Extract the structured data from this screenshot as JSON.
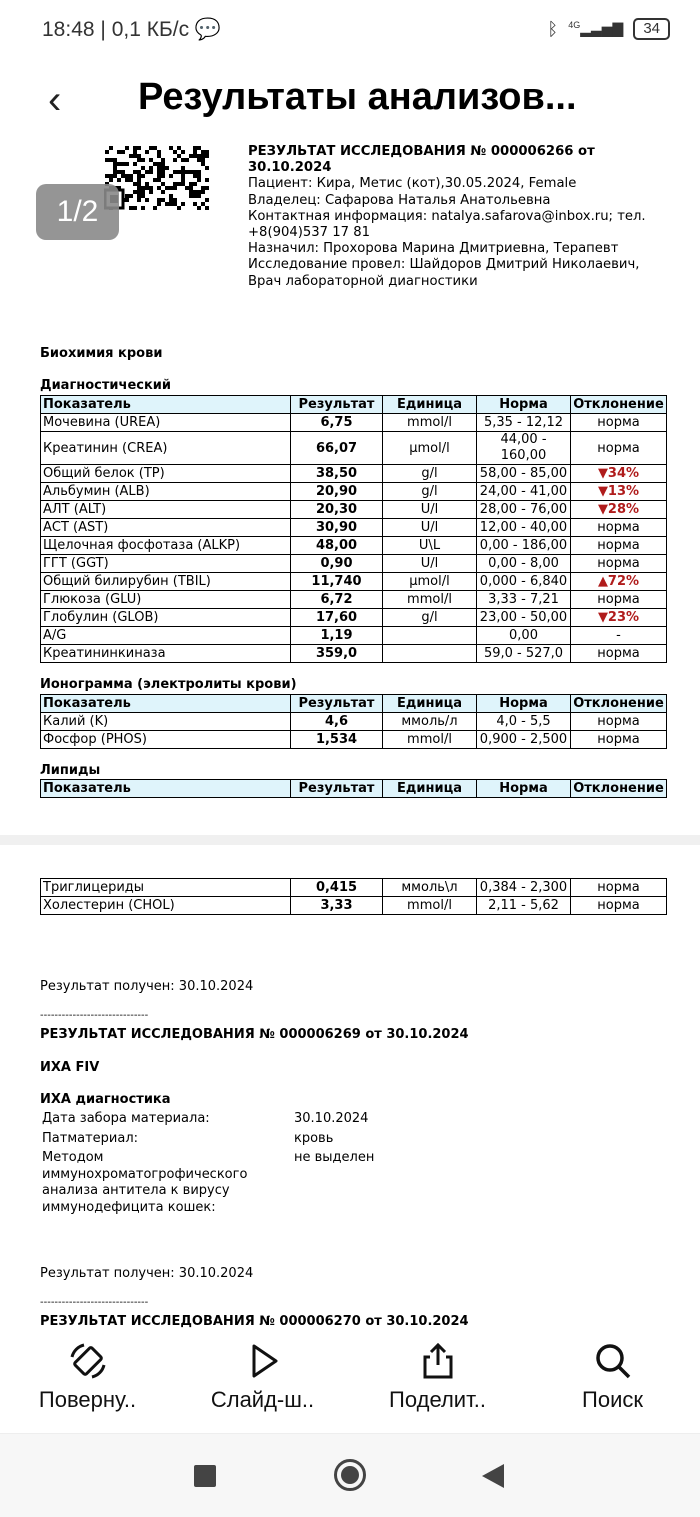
{
  "status": {
    "time": "18:48",
    "speed": "0,1 КБ/с",
    "network": "4G",
    "battery": "34"
  },
  "header": {
    "title": "Результаты анализов...",
    "page_indicator": "1/2"
  },
  "doc": {
    "heading_line1": "РЕЗУЛЬТАТ ИССЛЕДОВАНИЯ № 000006266 от",
    "heading_line2": "30.10.2024",
    "patient": "Пациент: Кира, Метис (кот),30.05.2024, Female",
    "owner": "Владелец: Сафарова Наталья Анатольевна",
    "contact1": "Контактная информация: natalya.safarova@inbox.ru; тел.",
    "contact2": "+8(904)537 17 81",
    "prescribed": "Назначил: Прохорова Марина Дмитриевна, Терапевт",
    "performed1": "Исследование провел: Шайдоров Дмитрий Николаевич,",
    "performed2": "Врач лабораторной диагностики",
    "section": "Биохимия крови",
    "sub1": "Диагностический",
    "sub2": "Ионограмма (электролиты крови)",
    "sub3": "Липиды",
    "columns": [
      "Показатель",
      "Результат",
      "Единица",
      "Норма",
      "Отклонение"
    ],
    "table1": [
      [
        "Мочевина (UREA)",
        "6,75",
        "mmol/l",
        "5,35 - 12,12",
        "норма"
      ],
      [
        "Креатинин (CREA)",
        "66,07",
        "µmol/l",
        "44,00 - 160,00",
        "норма"
      ],
      [
        "Общий белок (TP)",
        "38,50",
        "g/l",
        "58,00 - 85,00",
        "▼34%"
      ],
      [
        "Альбумин (ALB)",
        "20,90",
        "g/l",
        "24,00 - 41,00",
        "▼13%"
      ],
      [
        "АЛТ (ALT)",
        "20,30",
        "U/l",
        "28,00 - 76,00",
        "▼28%"
      ],
      [
        "АСТ (AST)",
        "30,90",
        "U/l",
        "12,00 - 40,00",
        "норма"
      ],
      [
        "Щелочная фосфотаза (ALKP)",
        "48,00",
        "U\\L",
        "0,00 - 186,00",
        "норма"
      ],
      [
        "ГГТ (GGT)",
        "0,90",
        "U/l",
        "0,00 - 8,00",
        "норма"
      ],
      [
        "Общий билирубин (TBIL)",
        "11,740",
        "µmol/l",
        "0,000 - 6,840",
        "▲72%"
      ],
      [
        "Глюкоза (GLU)",
        "6,72",
        "mmol/l",
        "3,33 - 7,21",
        "норма"
      ],
      [
        "Глобулин (GLOB)",
        "17,60",
        "g/l",
        "23,00 - 50,00",
        "▼23%"
      ],
      [
        "A/G",
        "1,19",
        "",
        "0,00",
        "-"
      ],
      [
        "Креатининкиназа",
        "359,0",
        "",
        "59,0 - 527,0",
        "норма"
      ]
    ],
    "table2": [
      [
        "Калий (K)",
        "4,6",
        "ммоль/л",
        "4,0 - 5,5",
        "норма"
      ],
      [
        "Фосфор (PHOS)",
        "1,534",
        "mmol/l",
        "0,900 - 2,500",
        "норма"
      ]
    ],
    "table4": [
      [
        "Триглицериды",
        "0,415",
        "ммоль\\л",
        "0,384 - 2,300",
        "норма"
      ],
      [
        "Холестерин (CHOL)",
        "3,33",
        "mmol/l",
        "2,11 - 5,62",
        "норма"
      ]
    ],
    "received1": "Результат получен: 30.10.2024",
    "divider": "------------------------------",
    "heading2": "РЕЗУЛЬТАТ ИССЛЕДОВАНИЯ № 000006269 от 30.10.2024",
    "test2": "ИХА FIV",
    "test2_sub": "ИХА диагностика",
    "fields": [
      {
        "label": "Дата забора материала:",
        "value": "30.10.2024"
      },
      {
        "label": "Патматериал:",
        "value": "кровь"
      },
      {
        "label": "Методом иммунохроматогрофического анализа антитела к вирусу иммунодефицита кошек:",
        "value": "не выделен"
      }
    ],
    "received2": "Результат получен: 30.10.2024",
    "heading3": "РЕЗУЛЬТАТ ИССЛЕДОВАНИЯ № 000006270 от 30.10.2024"
  },
  "toolbar": {
    "rotate": "Поверну..",
    "slideshow": "Слайд-ш..",
    "share": "Поделит..",
    "search": "Поиск"
  },
  "colors": {
    "deviation": "#b01c1c",
    "header_bg": "#dff4fb"
  }
}
